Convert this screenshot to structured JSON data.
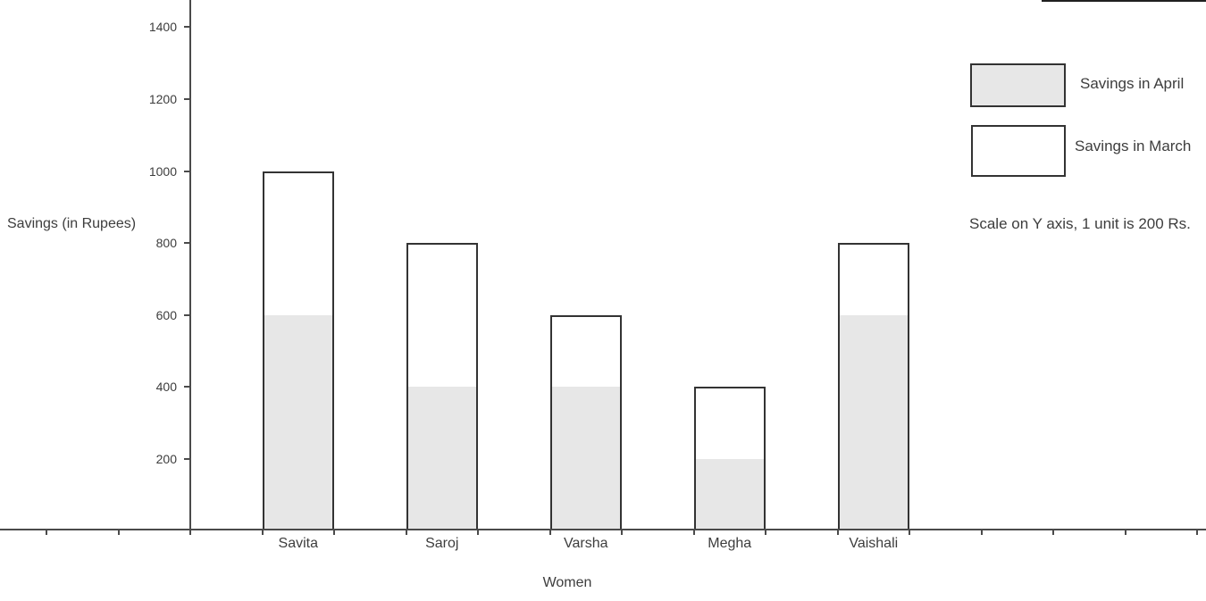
{
  "chart_data": {
    "type": "bar",
    "stacked": true,
    "title": "",
    "xlabel": "Women",
    "ylabel": "Savings (in Rupees)",
    "categories": [
      "Savita",
      "Saroj",
      "Varsha",
      "Megha",
      "Vaishali"
    ],
    "series": [
      {
        "name": "Savings in April",
        "values": [
          600,
          400,
          400,
          200,
          600
        ],
        "fill": "#e7e7e7"
      },
      {
        "name": "Savings in March",
        "values": [
          400,
          400,
          200,
          200,
          200
        ],
        "fill": "#ffffff"
      }
    ],
    "totals": [
      1000,
      800,
      600,
      400,
      800
    ],
    "y_ticks": [
      200,
      400,
      600,
      800,
      1000,
      1200,
      1400
    ],
    "ylim": [
      0,
      1475
    ],
    "grid": false,
    "legend_position": "top-right",
    "note": "Scale on Y axis, 1 unit is 200 Rs.",
    "colors": {
      "bar_border": "#333333",
      "april_fill": "#e7e7e7",
      "march_fill": "#ffffff",
      "axis": "#4a4a4a",
      "text": "#3d3d3d"
    }
  }
}
